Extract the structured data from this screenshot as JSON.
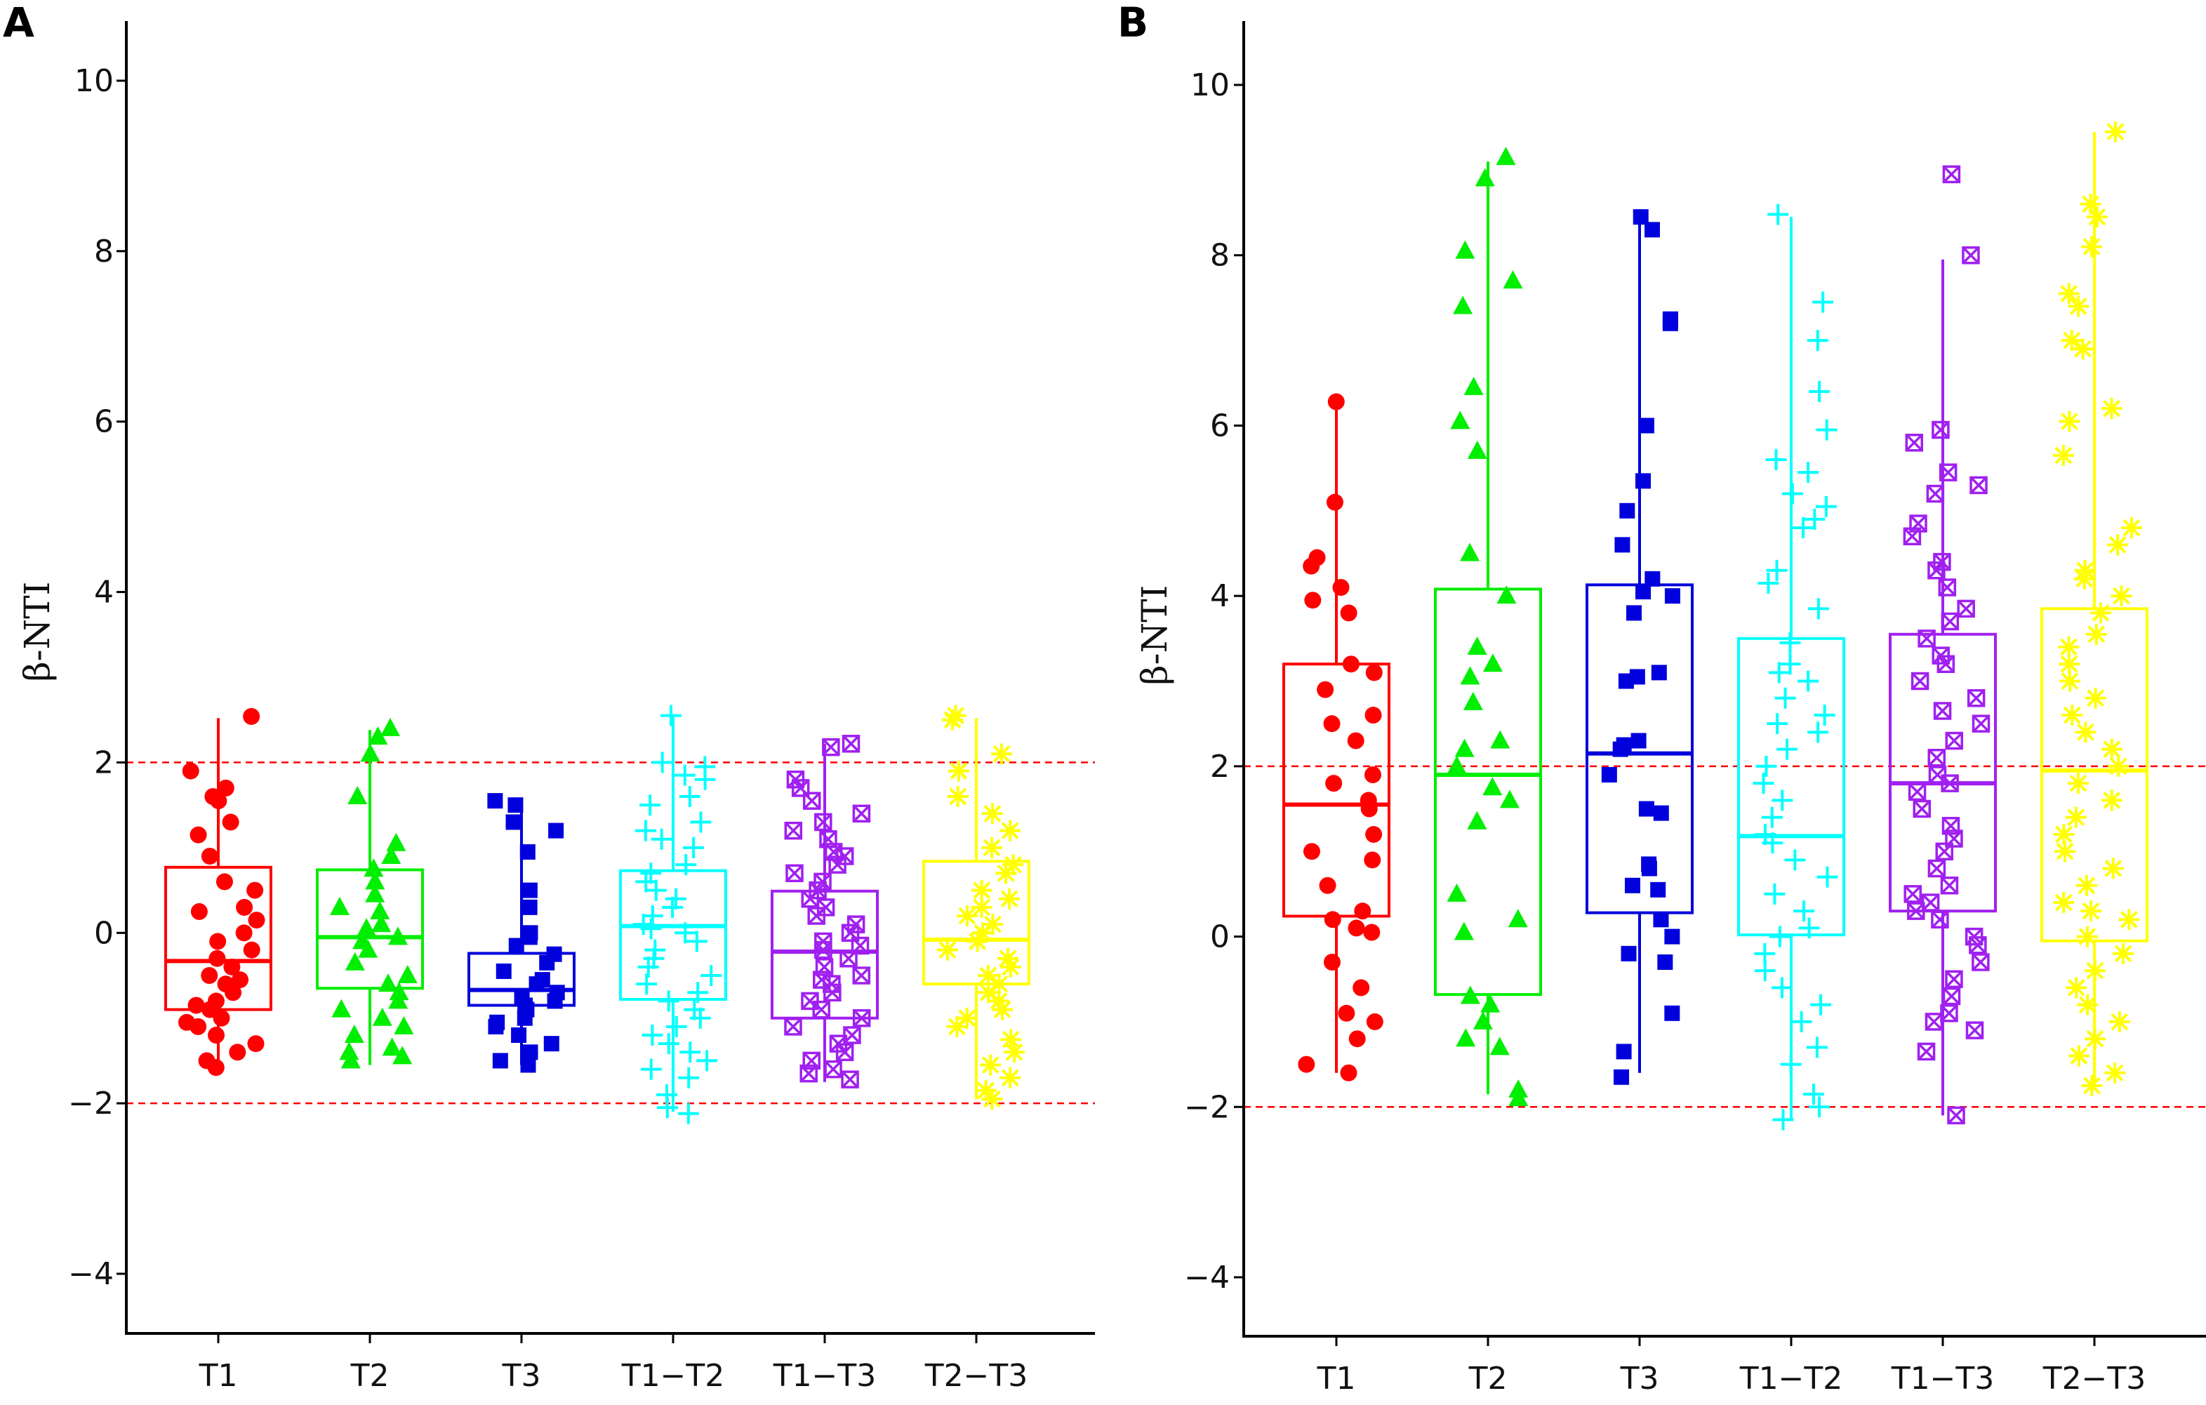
{
  "colors": {
    "T1": "#ff0000",
    "T2": "#00ee00",
    "T3": "#0000dd",
    "T1-T2": "#00ffff",
    "T1-T3": "#a020f0",
    "T2-T3": "#ffff00",
    "reference": "#ff0000"
  },
  "chart_data": [
    {
      "panel": "A",
      "type": "box",
      "ylabel": "β-NTI",
      "ylim": [
        -4.5,
        10.5
      ],
      "yticks": [
        "−4",
        "−2",
        "0",
        "2",
        "4",
        "6",
        "8",
        "10"
      ],
      "ytick_values": [
        -4,
        -2,
        0,
        2,
        4,
        6,
        8,
        10
      ],
      "reference_lines": [
        2,
        -2
      ],
      "categories": [
        "T1",
        "T2",
        "T3",
        "T1−T2",
        "T1−T3",
        "T2−T3"
      ],
      "series": [
        {
          "name": "T1",
          "marker": "circle",
          "q1": -0.9,
          "median": -0.33,
          "q3": 0.77,
          "whisker_low": -1.6,
          "whisker_high": 2.52,
          "points": [
            2.54,
            1.9,
            1.7,
            1.6,
            1.55,
            1.3,
            1.15,
            0.9,
            0.6,
            0.5,
            0.3,
            0.25,
            0.15,
            0.0,
            -0.1,
            -0.2,
            -0.3,
            -0.4,
            -0.5,
            -0.55,
            -0.6,
            -0.7,
            -0.8,
            -0.85,
            -0.9,
            -1.0,
            -1.05,
            -1.1,
            -1.2,
            -1.3,
            -1.4,
            -1.5,
            -1.58
          ]
        },
        {
          "name": "T2",
          "marker": "triangle",
          "q1": -0.65,
          "median": -0.05,
          "q3": 0.74,
          "whisker_low": -1.55,
          "whisker_high": 2.38,
          "points": [
            2.4,
            2.3,
            2.1,
            1.6,
            1.05,
            0.9,
            0.75,
            0.6,
            0.45,
            0.3,
            0.25,
            0.1,
            0.05,
            -0.05,
            -0.1,
            -0.2,
            -0.35,
            -0.5,
            -0.6,
            -0.7,
            -0.8,
            -0.9,
            -1.0,
            -1.1,
            -1.2,
            -1.35,
            -1.4,
            -1.45,
            -1.5
          ]
        },
        {
          "name": "T3",
          "marker": "square",
          "q1": -0.85,
          "median": -0.67,
          "q3": -0.24,
          "whisker_low": -1.55,
          "whisker_high": 1.52,
          "points": [
            1.55,
            1.5,
            1.3,
            1.2,
            0.95,
            0.5,
            0.3,
            0.0,
            -0.05,
            -0.15,
            -0.25,
            -0.35,
            -0.45,
            -0.55,
            -0.6,
            -0.7,
            -0.75,
            -0.8,
            -0.85,
            -0.9,
            -1.0,
            -1.05,
            -1.1,
            -1.2,
            -1.3,
            -1.4,
            -1.5,
            -1.55
          ]
        },
        {
          "name": "T1−T2",
          "marker": "plus",
          "q1": -0.78,
          "median": 0.08,
          "q3": 0.73,
          "whisker_low": -2.1,
          "whisker_high": 2.55,
          "points": [
            2.55,
            2.0,
            1.95,
            1.85,
            1.8,
            1.6,
            1.5,
            1.3,
            1.2,
            1.1,
            1.0,
            0.8,
            0.7,
            0.6,
            0.5,
            0.4,
            0.3,
            0.2,
            0.1,
            0.05,
            0.0,
            -0.1,
            -0.2,
            -0.3,
            -0.4,
            -0.5,
            -0.6,
            -0.7,
            -0.8,
            -0.9,
            -1.0,
            -1.1,
            -1.2,
            -1.3,
            -1.4,
            -1.5,
            -1.6,
            -1.7,
            -1.9,
            -2.05,
            -2.12
          ]
        },
        {
          "name": "T1−T3",
          "marker": "xsquare",
          "q1": -1.0,
          "median": -0.22,
          "q3": 0.49,
          "whisker_low": -1.75,
          "whisker_high": 2.22,
          "points": [
            2.22,
            2.18,
            1.8,
            1.7,
            1.55,
            1.4,
            1.3,
            1.2,
            1.1,
            0.95,
            0.9,
            0.8,
            0.7,
            0.6,
            0.5,
            0.4,
            0.3,
            0.2,
            0.1,
            0.0,
            -0.1,
            -0.15,
            -0.2,
            -0.3,
            -0.4,
            -0.5,
            -0.55,
            -0.6,
            -0.7,
            -0.8,
            -0.9,
            -1.0,
            -1.1,
            -1.2,
            -1.3,
            -1.4,
            -1.5,
            -1.6,
            -1.65,
            -1.72
          ]
        },
        {
          "name": "T2−T3",
          "marker": "star",
          "q1": -0.6,
          "median": -0.08,
          "q3": 0.84,
          "whisker_low": -1.95,
          "whisker_high": 2.52,
          "points": [
            2.55,
            2.5,
            2.1,
            1.9,
            1.6,
            1.4,
            1.2,
            1.0,
            0.8,
            0.7,
            0.5,
            0.4,
            0.3,
            0.2,
            0.1,
            0.0,
            -0.1,
            -0.2,
            -0.3,
            -0.4,
            -0.5,
            -0.6,
            -0.7,
            -0.8,
            -0.9,
            -1.0,
            -1.1,
            -1.25,
            -1.4,
            -1.55,
            -1.7,
            -1.85,
            -1.95
          ]
        }
      ]
    },
    {
      "panel": "B",
      "type": "box",
      "ylabel": "β-NTI",
      "ylim": [
        -4.5,
        10.5
      ],
      "yticks": [
        "−4",
        "−2",
        "0",
        "2",
        "4",
        "6",
        "8",
        "10"
      ],
      "ytick_values": [
        -4,
        -2,
        0,
        2,
        4,
        6,
        8,
        10
      ],
      "reference_lines": [
        2,
        -2
      ],
      "categories": [
        "T1",
        "T2",
        "T3",
        "T1−T2",
        "T1−T3",
        "T2−T3"
      ],
      "series": [
        {
          "name": "T1",
          "marker": "circle",
          "q1": 0.24,
          "median": 1.55,
          "q3": 3.2,
          "whisker_low": -1.6,
          "whisker_high": 6.25,
          "points": [
            6.28,
            5.1,
            4.45,
            4.35,
            4.1,
            3.95,
            3.8,
            3.2,
            3.1,
            2.9,
            2.6,
            2.5,
            2.3,
            1.9,
            1.8,
            1.6,
            1.5,
            1.2,
            1.0,
            0.9,
            0.6,
            0.3,
            0.2,
            0.1,
            0.05,
            -0.3,
            -0.6,
            -0.9,
            -1.0,
            -1.2,
            -1.5,
            -1.6
          ]
        },
        {
          "name": "T2",
          "marker": "triangle",
          "q1": -0.68,
          "median": 1.9,
          "q3": 4.08,
          "whisker_low": -1.85,
          "whisker_high": 9.1,
          "points": [
            9.15,
            8.9,
            8.05,
            7.7,
            7.4,
            6.45,
            6.05,
            5.7,
            4.5,
            4.0,
            3.4,
            3.2,
            3.05,
            2.75,
            2.3,
            2.2,
            2.0,
            1.75,
            1.6,
            1.35,
            0.5,
            0.2,
            0.05,
            -0.7,
            -0.8,
            -1.0,
            -1.2,
            -1.3,
            -1.8,
            -1.9
          ]
        },
        {
          "name": "T3",
          "marker": "square",
          "q1": 0.28,
          "median": 2.15,
          "q3": 4.13,
          "whisker_low": -1.6,
          "whisker_high": 8.4,
          "points": [
            8.45,
            8.3,
            7.25,
            7.2,
            6.0,
            5.35,
            5.0,
            4.6,
            4.2,
            4.05,
            4.0,
            3.8,
            3.1,
            3.05,
            3.0,
            2.3,
            2.25,
            2.2,
            1.9,
            1.5,
            1.45,
            0.85,
            0.8,
            0.6,
            0.55,
            0.2,
            0.0,
            -0.2,
            -0.3,
            -0.9,
            -1.35,
            -1.65
          ]
        },
        {
          "name": "T1−T2",
          "marker": "plus",
          "q1": 0.02,
          "median": 1.18,
          "q3": 3.5,
          "whisker_low": -2.15,
          "whisker_high": 8.45,
          "points": [
            8.48,
            7.45,
            7.0,
            6.4,
            5.95,
            5.6,
            5.45,
            5.2,
            5.05,
            4.9,
            4.8,
            4.3,
            4.15,
            3.85,
            3.45,
            3.2,
            3.1,
            3.0,
            2.8,
            2.6,
            2.5,
            2.4,
            2.2,
            2.0,
            1.8,
            1.6,
            1.4,
            1.2,
            1.1,
            0.9,
            0.7,
            0.5,
            0.3,
            0.1,
            0.0,
            -0.2,
            -0.4,
            -0.6,
            -0.8,
            -1.0,
            -1.3,
            -1.5,
            -1.85,
            -2.0,
            -2.15
          ]
        },
        {
          "name": "T1−T3",
          "marker": "xsquare",
          "q1": 0.3,
          "median": 1.8,
          "q3": 3.55,
          "whisker_low": -2.1,
          "whisker_high": 7.95,
          "points": [
            8.95,
            8.0,
            5.95,
            5.8,
            5.45,
            5.3,
            5.2,
            4.85,
            4.7,
            4.4,
            4.3,
            4.1,
            3.85,
            3.7,
            3.5,
            3.3,
            3.2,
            3.0,
            2.8,
            2.65,
            2.5,
            2.3,
            2.1,
            1.9,
            1.8,
            1.7,
            1.5,
            1.3,
            1.15,
            1.0,
            0.8,
            0.6,
            0.5,
            0.4,
            0.3,
            0.2,
            0.0,
            -0.1,
            -0.3,
            -0.5,
            -0.7,
            -0.9,
            -1.0,
            -1.1,
            -1.35,
            -2.1
          ]
        },
        {
          "name": "T2−T3",
          "marker": "star",
          "q1": -0.05,
          "median": 1.95,
          "q3": 3.85,
          "whisker_low": -1.75,
          "whisker_high": 9.45,
          "points": [
            9.45,
            8.6,
            8.45,
            8.1,
            7.55,
            7.4,
            7.0,
            6.9,
            6.2,
            6.05,
            5.65,
            4.8,
            4.6,
            4.3,
            4.2,
            4.0,
            3.8,
            3.55,
            3.4,
            3.2,
            3.0,
            2.8,
            2.6,
            2.4,
            2.2,
            2.0,
            1.8,
            1.6,
            1.4,
            1.2,
            1.0,
            0.8,
            0.6,
            0.4,
            0.3,
            0.2,
            0.0,
            -0.2,
            -0.4,
            -0.6,
            -0.8,
            -1.0,
            -1.2,
            -1.4,
            -1.6,
            -1.75
          ]
        }
      ]
    }
  ]
}
